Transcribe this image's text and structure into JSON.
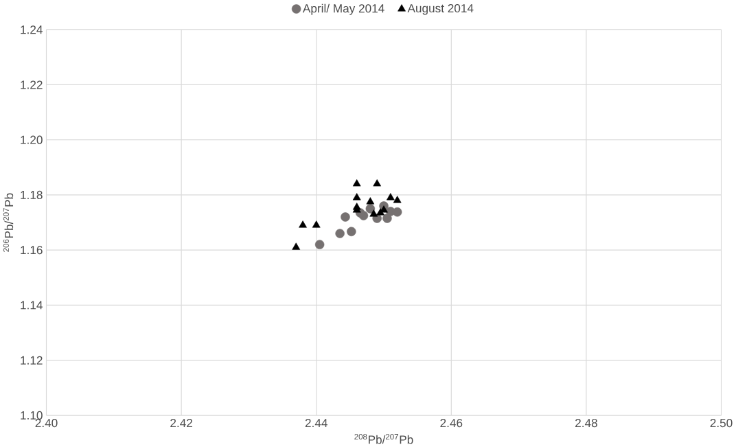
{
  "chart_data": {
    "type": "scatter",
    "xlabel": "$^{208}$Pb/$^{207}$Pb",
    "ylabel": "$^{206}$Pb/$^{207}$Pb",
    "xlim": [
      2.4,
      2.5
    ],
    "xticks": [
      {
        "value": 2.4,
        "label": "2.40"
      },
      {
        "value": 2.42,
        "label": "2.42"
      },
      {
        "value": 2.44,
        "label": "2.44"
      },
      {
        "value": 2.46,
        "label": "2.46"
      },
      {
        "value": 2.48,
        "label": "2.48"
      },
      {
        "value": 2.5,
        "label": "2.50"
      }
    ],
    "ylim": [
      1.1,
      1.24
    ],
    "yticks": [
      {
        "value": 1.1,
        "label": "1.10"
      },
      {
        "value": 1.12,
        "label": "1.12"
      },
      {
        "value": 1.14,
        "label": "1.14"
      },
      {
        "value": 1.16,
        "label": "1.16"
      },
      {
        "value": 1.18,
        "label": "1.18"
      },
      {
        "value": 1.2,
        "label": "1.20"
      },
      {
        "value": 1.22,
        "label": "1.22"
      },
      {
        "value": 1.24,
        "label": "1.24"
      }
    ],
    "grid": true,
    "legend": "top",
    "series": [
      {
        "name": "April/ May 2014",
        "color": "#767171",
        "marker": "circle",
        "x": [
          2.4405,
          2.4435,
          2.4452,
          2.4443,
          2.446,
          2.447,
          2.448,
          2.449,
          2.45,
          2.4505,
          2.451,
          2.452,
          2.4465
        ],
        "values": [
          1.162,
          1.166,
          1.1667,
          1.172,
          null,
          1.1725,
          1.175,
          1.1715,
          1.176,
          1.1715,
          1.174,
          1.1738,
          1.1735
        ]
      },
      {
        "name": "August 2014",
        "color": "#000000",
        "marker": "triangle",
        "x": [
          2.437,
          2.438,
          2.44,
          2.446,
          2.449,
          2.446,
          2.448,
          2.451,
          2.452,
          2.446,
          2.4495,
          2.45,
          2.4485,
          2.446
        ],
        "values": [
          1.161,
          1.169,
          1.169,
          1.184,
          1.184,
          1.179,
          1.1775,
          1.179,
          1.178,
          1.1745,
          1.1735,
          1.1745,
          1.173,
          1.1755
        ]
      }
    ]
  }
}
